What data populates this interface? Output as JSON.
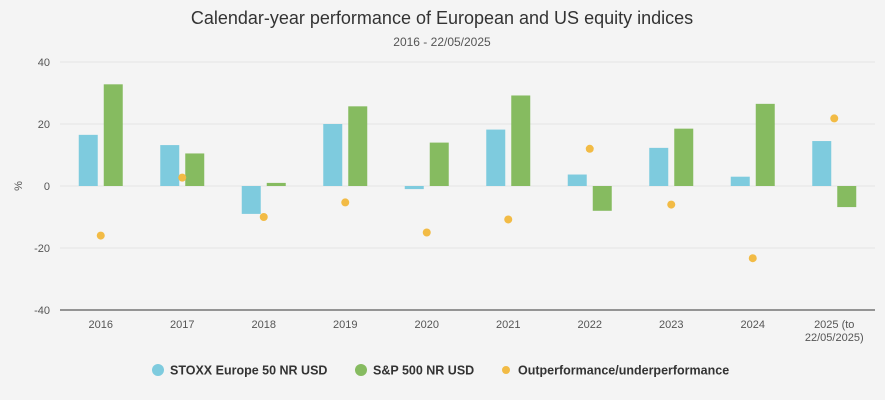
{
  "chart_data": {
    "type": "bar",
    "title": "Calendar-year performance of European and US equity indices",
    "subtitle": "2016 - 22/05/2025",
    "ylabel": "%",
    "xlabel": "",
    "ylim": [
      -40,
      40
    ],
    "yticks": [
      40,
      20,
      0,
      -20,
      -40
    ],
    "categories": [
      [
        "2016"
      ],
      [
        "2017"
      ],
      [
        "2018"
      ],
      [
        "2019"
      ],
      [
        "2020"
      ],
      [
        "2021"
      ],
      [
        "2022"
      ],
      [
        "2023"
      ],
      [
        "2024"
      ],
      [
        "2025 (to",
        "22/05/2025)"
      ]
    ],
    "series": [
      {
        "name": "STOXX Europe 50 NR USD",
        "type": "bar",
        "color": "#7ecbde",
        "values": [
          16.5,
          13.2,
          -9.0,
          20.0,
          -1.0,
          18.2,
          3.7,
          12.3,
          3.0,
          14.5
        ]
      },
      {
        "name": "S&P 500 NR USD",
        "type": "bar",
        "color": "#86bb60",
        "values": [
          32.8,
          10.5,
          1.0,
          25.7,
          14.0,
          29.2,
          -8.0,
          18.5,
          26.5,
          -6.8
        ]
      },
      {
        "name": "Outperformance/underperformance",
        "type": "scatter",
        "color": "#f2bb45",
        "values": [
          -16.0,
          2.7,
          -10.0,
          -5.3,
          -15.0,
          -10.8,
          12.0,
          -6.0,
          -23.3,
          21.8
        ]
      }
    ],
    "legend": "bottom-center",
    "grid": true
  }
}
